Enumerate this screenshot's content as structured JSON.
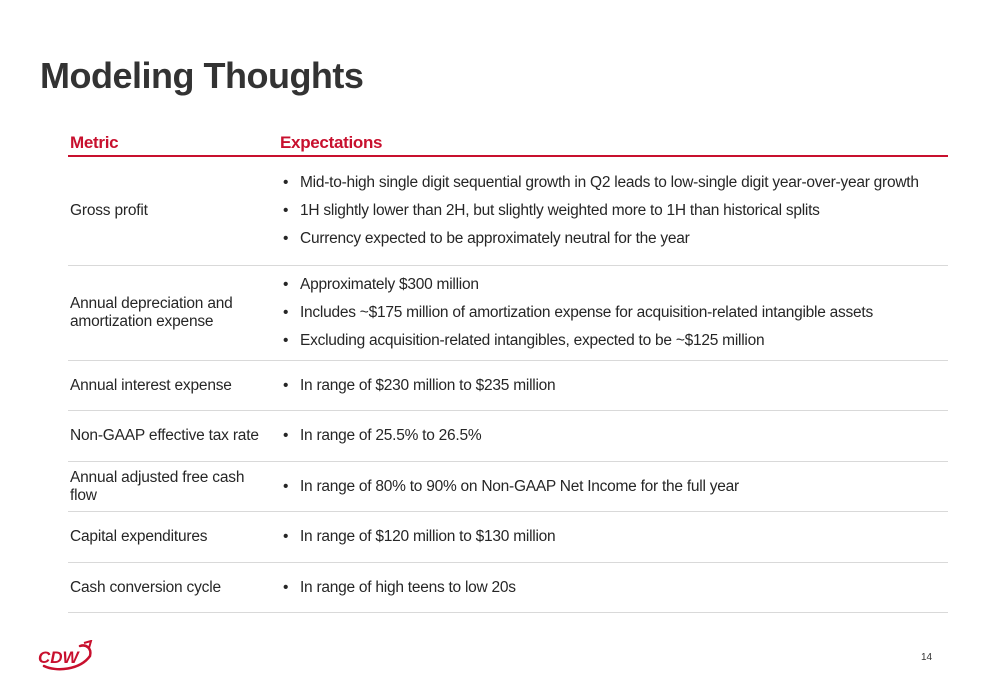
{
  "title": "Modeling Thoughts",
  "table": {
    "header": {
      "metric": "Metric",
      "expectations": "Expectations"
    },
    "rows": [
      {
        "metric": "Gross profit",
        "items": [
          "Mid-to-high single digit sequential growth in Q2 leads to low-single digit year-over-year growth",
          "1H slightly lower than 2H, but slightly weighted more to 1H than historical splits",
          "Currency expected to be approximately neutral for the year"
        ]
      },
      {
        "metric": "Annual depreciation and amortization expense",
        "items": [
          "Approximately $300 million",
          "Includes ~$175 million of amortization expense for acquisition-related intangible assets",
          "Excluding acquisition-related intangibles, expected to be ~$125 million"
        ]
      },
      {
        "metric": "Annual interest expense",
        "items": [
          "In range of $230 million to $235 million"
        ]
      },
      {
        "metric": "Non-GAAP effective tax rate",
        "items": [
          "In range of 25.5% to 26.5%"
        ]
      },
      {
        "metric": "Annual adjusted free cash flow",
        "items": [
          "In range of 80% to 90% on Non-GAAP Net Income for the full year"
        ]
      },
      {
        "metric": "Capital expenditures",
        "items": [
          "In range of $120 million to $130 million"
        ]
      },
      {
        "metric": "Cash conversion cycle",
        "items": [
          "In range of high teens to low 20s"
        ]
      }
    ]
  },
  "footer": {
    "logo_text": "CDW",
    "page_number": "14"
  },
  "colors": {
    "accent": "#c8102e",
    "title": "#333333",
    "rule": "#d9d9d9"
  }
}
